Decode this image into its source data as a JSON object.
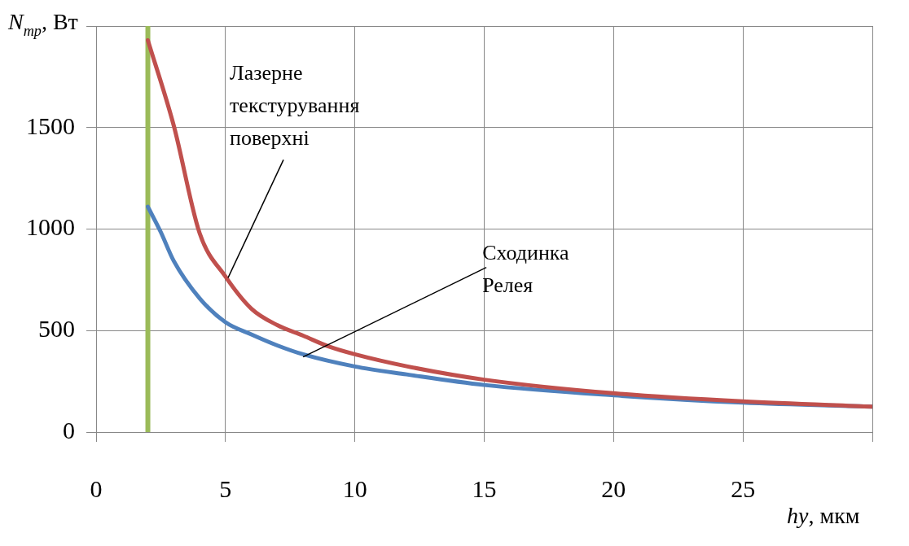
{
  "chart_data": {
    "type": "line",
    "xlabel": "hy, мкм",
    "ylabel": "N$_{тр}$, Вт",
    "xlim": [
      0,
      30
    ],
    "xticks": [
      0,
      5,
      10,
      15,
      20,
      25,
      {
        "value": 30,
        "label": null
      }
    ],
    "ylim": [
      0,
      2000
    ],
    "yticks": [
      0,
      500,
      1000,
      1500,
      {
        "value": 2000,
        "label": null
      }
    ],
    "grid": true,
    "legend": false,
    "marker": "none",
    "line_style": "solid",
    "series": [
      {
        "color": "#c0504d",
        "x": [
          2,
          3,
          4,
          5,
          6,
          7,
          8,
          9,
          10,
          12,
          15,
          20,
          25,
          30
        ],
        "values": [
          1930,
          1510,
          980,
          766,
          608,
          527,
          475,
          421,
          383,
          324,
          258,
          191,
          151,
          125
        ]
      },
      {
        "color": "#4f81bd",
        "x": [
          2,
          2.5,
          3,
          4,
          5,
          6,
          7,
          8,
          10,
          12,
          15,
          20,
          25,
          30
        ],
        "values": [
          1110,
          985,
          843,
          659,
          541,
          481,
          427,
          383,
          323,
          284,
          232,
          181,
          145,
          125
        ]
      }
    ],
    "ref_lines": [
      {
        "axis": "x",
        "value": 2,
        "color": "#9bbb59"
      }
    ],
    "annotations": [
      {
        "text": "Лазерне\nтекстурування\nповерхні",
        "x": 5.1,
        "y": 760
      },
      {
        "text": "Сходинка\nРелея",
        "x": 8,
        "y": 370
      }
    ]
  }
}
